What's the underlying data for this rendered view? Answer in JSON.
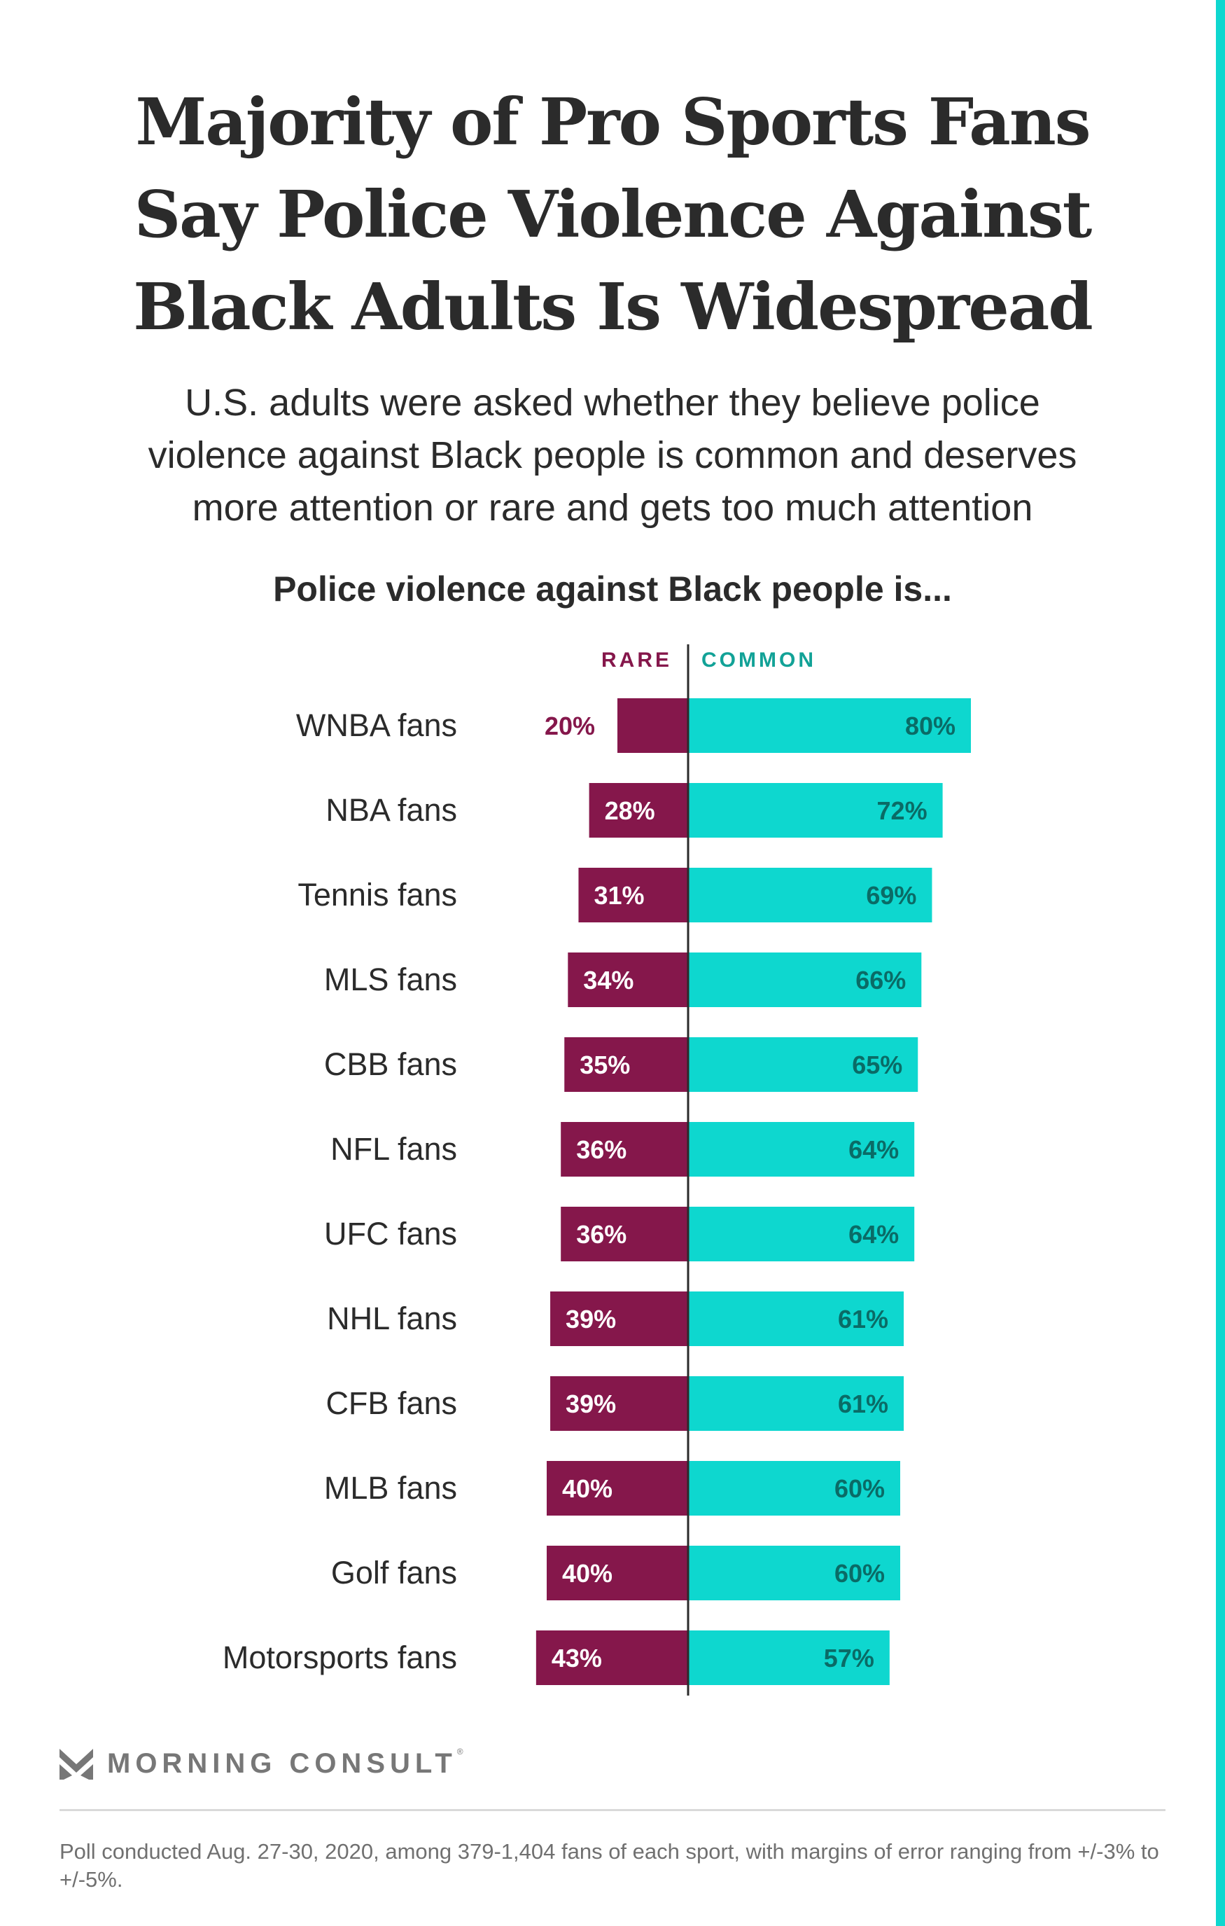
{
  "title_lines": [
    "Majority of Pro Sports Fans",
    "Say Police Violence Against",
    "Black Adults Is Widespread"
  ],
  "subtitle_lines": [
    "U.S. adults were asked whether they believe police",
    "violence against Black people is common and deserves",
    "more attention or rare and gets too much attention"
  ],
  "brand": {
    "name": "MORNING CONSULT",
    "registered_mark": "®",
    "logo_icon": "morning-consult-chevron-logo"
  },
  "footnote": "Poll conducted Aug. 27-30, 2020, among 379-1,404 fans of each sport, with margins of error ranging from +/-3% to +/-5%.",
  "colors": {
    "rare": "#85174b",
    "common": "#0ed7cf",
    "common_label_text": "#0a6b66",
    "rare_legend": "#85174b",
    "common_legend": "#12a297",
    "accent_stripe": "#0ed7cf"
  },
  "chart_data": {
    "type": "bar",
    "orientation": "horizontal-diverging",
    "title": "Police violence against Black people is...",
    "xlabel": "",
    "ylabel": "",
    "xlim": [
      -50,
      100
    ],
    "grid": false,
    "legend": [
      "RARE",
      "COMMON"
    ],
    "legend_placement": "top-center",
    "categories": [
      "WNBA fans",
      "NBA fans",
      "Tennis fans",
      "MLS fans",
      "CBB fans",
      "NFL fans",
      "UFC fans",
      "NHL fans",
      "CFB fans",
      "MLB fans",
      "Golf fans",
      "Motorsports fans"
    ],
    "series": [
      {
        "name": "RARE",
        "values": [
          20,
          28,
          31,
          34,
          35,
          36,
          36,
          39,
          39,
          40,
          40,
          43
        ]
      },
      {
        "name": "COMMON",
        "values": [
          80,
          72,
          69,
          66,
          65,
          64,
          64,
          61,
          61,
          60,
          60,
          57
        ]
      }
    ],
    "value_suffix": "%"
  }
}
